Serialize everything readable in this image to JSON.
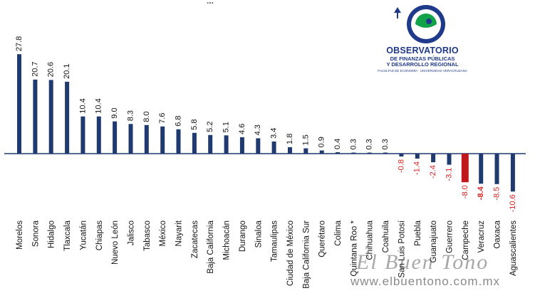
{
  "header_cut_text": "...",
  "logo": {
    "title": "OBSERVATORIO",
    "subtitle_line1": "DE FINANZAS PÚBLICAS",
    "subtitle_line2": "Y DESARROLLO REGIONAL",
    "tiny_line": "FACULTAD DE ECONOMÍA · UNIVERSIDAD VERACRUZANA",
    "colors": {
      "blue": "#1f3a8a",
      "green": "#12a34a"
    }
  },
  "watermark": {
    "brand": "El Buen Tono",
    "url": "www.elbuentono.com.mx"
  },
  "colors": {
    "bar": "#1f3a6e",
    "highlight_bar": "#c0171b",
    "positive_label": "#111111",
    "negative_label": "#e02020",
    "axis": "#1f3a6e"
  },
  "chart_data": {
    "type": "bar",
    "title": "",
    "xlabel": "",
    "ylabel": "",
    "ylim": [
      -12,
      29
    ],
    "grid": false,
    "legend": "none",
    "highlight_category": "Campeche",
    "bold_value_category": "Veracruz",
    "categories": [
      "Morelos",
      "Sonora",
      "Hidalgo",
      "Tlaxcala",
      "Yucatán",
      "Chiapas",
      "Nuevo León",
      "Jalisco",
      "Tabasco",
      "México",
      "Nayarit",
      "Zacatecas",
      "Baja California",
      "Michoacán",
      "Durango",
      "Sinaloa",
      "Tamaulipas",
      "Ciudad de México",
      "Baja California Sur",
      "Querétaro",
      "Colima",
      "Quintana Roo *",
      "Chihuahua",
      "Coahuila",
      "San Luis Potosí",
      "Puebla",
      "Guanajuato",
      "Guerrero",
      "Campeche",
      "Veracruz",
      "Oaxaca",
      "Aguascalientes"
    ],
    "values": [
      27.8,
      20.7,
      20.6,
      20.1,
      10.4,
      10.4,
      9.0,
      8.3,
      8.0,
      7.6,
      6.8,
      5.8,
      5.2,
      5.1,
      4.6,
      4.3,
      3.4,
      1.8,
      1.5,
      0.9,
      0.4,
      0.3,
      0.3,
      0.3,
      -0.8,
      -1.4,
      -2.4,
      -3.1,
      -8.0,
      -8.4,
      -8.5,
      -10.6
    ],
    "value_labels": [
      "27.8",
      "20.7",
      "20.6",
      "20.1",
      "10.4",
      "10.4",
      "9.0",
      "8.3",
      "8.0",
      "7.6",
      "6.8",
      "5.8",
      "5.2",
      "5.1",
      "4.6",
      "4.3",
      "3.4",
      "1.8",
      "1.5",
      "0.9",
      "0.4",
      "0.3",
      "0.3",
      "0.3",
      "-0.8",
      "-1.4",
      "-2.4",
      "-3.1",
      "-8.0",
      "-8.4",
      "-8.5",
      "-10.6"
    ]
  }
}
